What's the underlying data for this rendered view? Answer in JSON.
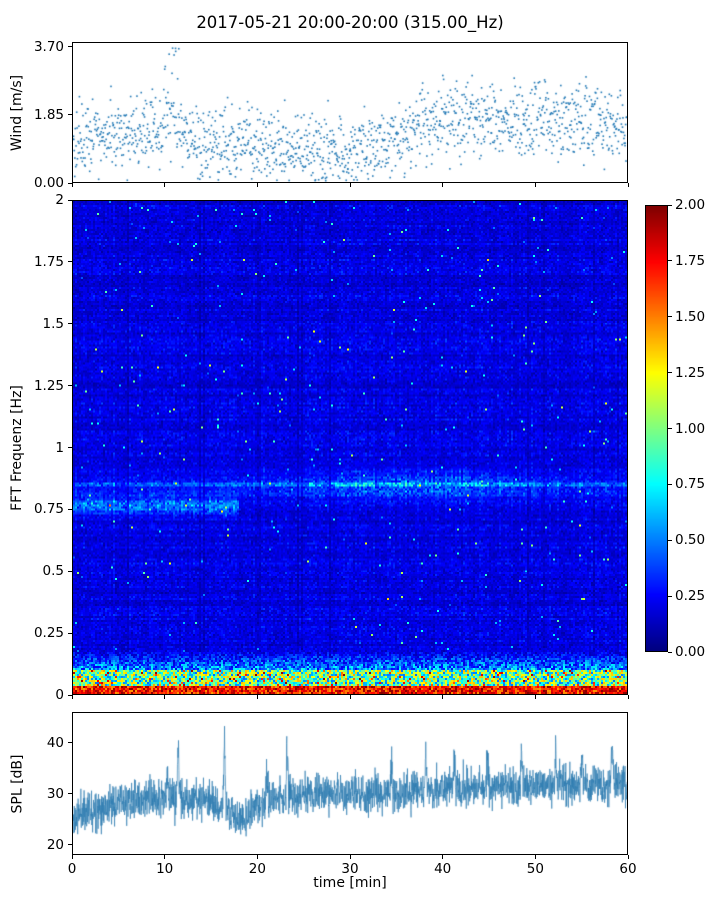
{
  "figure_title": "2017-05-21 20:00-20:00 (315.00_Hz)",
  "chart_data": [
    {
      "id": "wind",
      "type": "scatter",
      "ylabel": "Wind [m/s]",
      "xlim": [
        0,
        60
      ],
      "ylim": [
        0,
        3.83
      ],
      "ytick_labels": [
        "0.00",
        "1.85",
        "3.70"
      ],
      "ytick_values": [
        0,
        1.85,
        3.7
      ],
      "xtick_values": [
        0,
        10,
        20,
        30,
        40,
        50,
        60
      ],
      "marker_color": "#1f77b4",
      "n_points": 1500,
      "seed": 42,
      "noise_sd": 0.5,
      "envelope": {
        "t": [
          0,
          3,
          6,
          9,
          11,
          13,
          16,
          19,
          22,
          25,
          28,
          31,
          34,
          37,
          40,
          44,
          48,
          52,
          56,
          60
        ],
        "v": [
          1.05,
          1.35,
          1.2,
          1.45,
          1.7,
          1.1,
          1.05,
          1.2,
          0.8,
          0.95,
          0.75,
          0.9,
          1.0,
          1.45,
          1.7,
          1.8,
          1.65,
          1.8,
          1.7,
          1.5
        ]
      },
      "spike": {
        "t_center": 10.7,
        "t_width": 0.8,
        "prob": 0.3,
        "max": 3.7
      }
    },
    {
      "id": "spectrogram",
      "type": "heatmap",
      "ylabel": "FFT Frequenz [Hz]",
      "xlim": [
        0,
        60
      ],
      "ylim": [
        0,
        2
      ],
      "ytick_labels": [
        "0",
        "0.25",
        "0.5",
        "0.75",
        "1",
        "1.25",
        "1.5",
        "1.75",
        "2"
      ],
      "ytick_values": [
        0,
        0.25,
        0.5,
        0.75,
        1,
        1.25,
        1.5,
        1.75,
        2
      ],
      "xtick_values": [
        0,
        10,
        20,
        30,
        40,
        50,
        60
      ],
      "colormap": "jet",
      "value_range": [
        0,
        2
      ],
      "seed": 7,
      "colorbar": {
        "tick_labels": [
          "0.00",
          "0.25",
          "0.50",
          "0.75",
          "1.00",
          "1.25",
          "1.50",
          "1.75",
          "2.00"
        ],
        "tick_values": [
          0,
          0.25,
          0.5,
          0.75,
          1,
          1.25,
          1.5,
          1.75,
          2
        ]
      },
      "model": {
        "base": 0.07,
        "base_noise": 0.11,
        "band_center": 0.85,
        "band_sigma": 0.05,
        "band_amp": 0.18,
        "band_peak_t": 37,
        "band_peak_sigma": 13,
        "band_peak_amp": 0.22,
        "band2_center": 0.76,
        "band2_sigma": 0.035,
        "band2_amp": 0.3,
        "band2_t_end": 18,
        "low1_f": 0.025,
        "low1_min": 1.45,
        "low1_rand": 0.55,
        "low2_f": 0.09,
        "low2_min": 0.45,
        "low2_rand": 0.95,
        "low3_f": 0.17,
        "low3_min": 0.15,
        "low3_rand": 0.45,
        "speckle_prob": 0.006,
        "speckle_min": 0.25,
        "speckle_rand": 0.55,
        "dark_col_prob": 0.05,
        "dark_col_gain": 0.72
      }
    },
    {
      "id": "spl",
      "type": "line",
      "ylabel": "SPL [dB]",
      "xlabel": "time [min]",
      "xlim": [
        0,
        60
      ],
      "ylim": [
        18,
        46
      ],
      "ytick_labels": [
        "20",
        "30",
        "40"
      ],
      "ytick_values": [
        20,
        30,
        40
      ],
      "xtick_labels": [
        "0",
        "10",
        "20",
        "30",
        "40",
        "50",
        "60"
      ],
      "xtick_values": [
        0,
        10,
        20,
        30,
        40,
        50,
        60
      ],
      "line_color": "#2e7cb0",
      "n_points": 2600,
      "seed": 11,
      "noise_sd": 1.9,
      "envelope": {
        "t": [
          0,
          1,
          3,
          6,
          9,
          12,
          15,
          17,
          18.5,
          20,
          24,
          28,
          32,
          36,
          40,
          44,
          48,
          52,
          56,
          60
        ],
        "v": [
          24.5,
          26.5,
          27.5,
          28.5,
          29,
          29,
          28.5,
          26,
          24.5,
          28,
          29.5,
          30,
          30,
          30.5,
          31,
          31,
          31.5,
          31.5,
          32,
          32.5
        ]
      },
      "spikes": [
        {
          "t": 10.2,
          "h": 7,
          "w": 0.1
        },
        {
          "t": 11.4,
          "h": 12,
          "w": 0.12
        },
        {
          "t": 16.4,
          "h": 14.5,
          "w": 0.14
        },
        {
          "t": 21.0,
          "h": 6,
          "w": 0.1
        },
        {
          "t": 23.2,
          "h": 11.5,
          "w": 0.12
        },
        {
          "t": 34.5,
          "h": 7,
          "w": 0.1
        },
        {
          "t": 38.2,
          "h": 7.5,
          "w": 0.1
        },
        {
          "t": 41.3,
          "h": 8.5,
          "w": 0.1
        },
        {
          "t": 44.9,
          "h": 7.5,
          "w": 0.1
        },
        {
          "t": 48.6,
          "h": 8,
          "w": 0.1
        },
        {
          "t": 52.3,
          "h": 8,
          "w": 0.1
        },
        {
          "t": 55.1,
          "h": 8.5,
          "w": 0.1
        },
        {
          "t": 58.4,
          "h": 9,
          "w": 0.12
        }
      ]
    }
  ]
}
